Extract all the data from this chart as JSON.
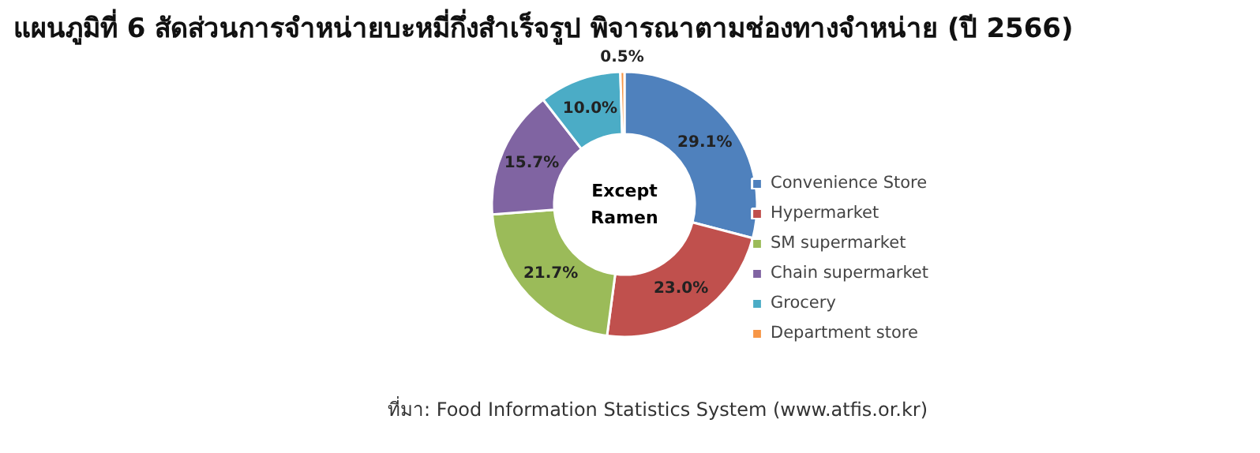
{
  "chart_data": {
    "type": "donut",
    "title": "แผนภูมิที่ 6 สัดส่วนการจำหน่ายบะหมี่กึ่งสำเร็จรูป พิจารณาตามช่องทางจำหน่าย (ปี 2566)",
    "categories": [
      "Convenience Store",
      "Hypermarket",
      "SM supermarket",
      "Chain supermarket",
      "Grocery",
      "Department store"
    ],
    "values": [
      29.1,
      23.0,
      21.7,
      15.7,
      10.0,
      0.5
    ],
    "colors": [
      "#4f81bd",
      "#c0504d",
      "#9bbb59",
      "#8064a2",
      "#4bacc6",
      "#f79646"
    ],
    "value_labels": [
      "29.1%",
      "23.0%",
      "21.7%",
      "15.7%",
      "10.0%",
      "0.5%"
    ],
    "legend": "right",
    "annotations": [
      "Except Ramen",
      "ที่มา: Food Information Statistics System (www.atfis.or.kr)"
    ]
  }
}
